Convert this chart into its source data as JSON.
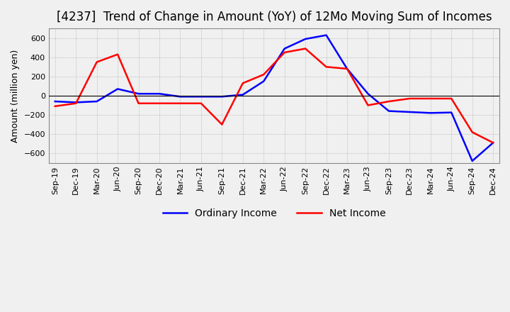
{
  "title": "[4237]  Trend of Change in Amount (YoY) of 12Mo Moving Sum of Incomes",
  "ylabel": "Amount (million yen)",
  "ylim": [
    -700,
    700
  ],
  "yticks": [
    -600,
    -400,
    -200,
    0,
    200,
    400,
    600
  ],
  "x_labels": [
    "Sep-19",
    "Dec-19",
    "Mar-20",
    "Jun-20",
    "Sep-20",
    "Dec-20",
    "Mar-21",
    "Jun-21",
    "Sep-21",
    "Dec-21",
    "Mar-22",
    "Jun-22",
    "Sep-22",
    "Dec-22",
    "Mar-23",
    "Jun-23",
    "Sep-23",
    "Dec-23",
    "Mar-24",
    "Jun-24",
    "Sep-24",
    "Dec-24"
  ],
  "ordinary_income": [
    -60,
    -70,
    -60,
    70,
    20,
    20,
    -10,
    -10,
    -10,
    10,
    150,
    490,
    590,
    630,
    280,
    20,
    -160,
    -170,
    -180,
    -175,
    -680,
    -490
  ],
  "net_income": [
    -110,
    -80,
    350,
    430,
    -80,
    -80,
    -80,
    -80,
    -300,
    130,
    220,
    450,
    490,
    300,
    280,
    -100,
    -60,
    -30,
    -30,
    -30,
    -380,
    -490
  ],
  "ordinary_color": "#0000ff",
  "net_color": "#ff0000",
  "grid_color": "#aaaaaa",
  "background_color": "#f0f0f0",
  "title_fontsize": 12,
  "label_fontsize": 9,
  "tick_fontsize": 8,
  "legend_fontsize": 10
}
